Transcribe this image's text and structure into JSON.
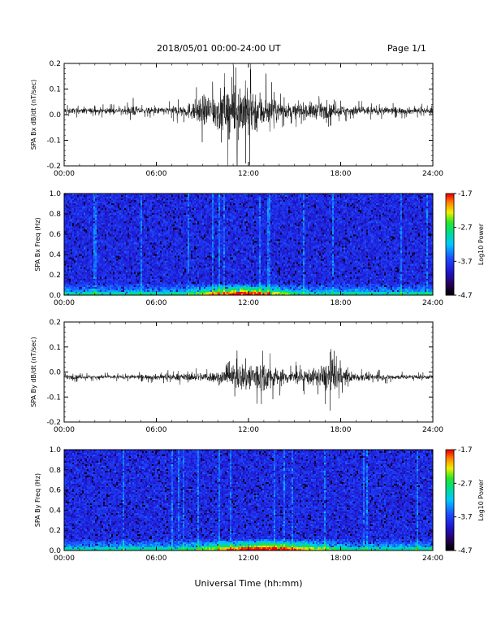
{
  "header": {
    "title": "2018/05/01  00:00-24:00 UT",
    "page": "Page 1/1"
  },
  "xaxis_title": "Universal Time (hh:mm)",
  "chart_data": [
    {
      "type": "line",
      "ylabel": "SPA Bx dB/dt (nT/sec)",
      "xticks": [
        "00:00",
        "06:00",
        "12:00",
        "18:00",
        "24:00"
      ],
      "xlim_hours": [
        0,
        24
      ],
      "ylim": [
        -0.2,
        0.2
      ],
      "yticks": [
        -0.2,
        -0.1,
        0.0,
        0.1,
        0.2
      ],
      "yticklabels": [
        "-0.2",
        "-0.1",
        "0.0",
        "0.1",
        "0.2"
      ],
      "baseline": 0.015,
      "envelope": [
        {
          "t": 0,
          "amp": 0.02
        },
        {
          "t": 4,
          "amp": 0.02
        },
        {
          "t": 4.5,
          "amp": 0.04
        },
        {
          "t": 5,
          "amp": 0.02
        },
        {
          "t": 7,
          "amp": 0.03
        },
        {
          "t": 8,
          "amp": 0.05
        },
        {
          "t": 9,
          "amp": 0.1
        },
        {
          "t": 10,
          "amp": 0.14
        },
        {
          "t": 11,
          "amp": 0.18
        },
        {
          "t": 11.5,
          "amp": 0.2
        },
        {
          "t": 12,
          "amp": 0.19
        },
        {
          "t": 13,
          "amp": 0.12
        },
        {
          "t": 14,
          "amp": 0.06
        },
        {
          "t": 15,
          "amp": 0.05
        },
        {
          "t": 16,
          "amp": 0.06
        },
        {
          "t": 17,
          "amp": 0.05
        },
        {
          "t": 18,
          "amp": 0.04
        },
        {
          "t": 20,
          "amp": 0.03
        },
        {
          "t": 24,
          "amp": 0.02
        }
      ]
    },
    {
      "type": "heatmap",
      "ylabel": "SPA Bx Freq (Hz)",
      "xticks": [
        "00:00",
        "06:00",
        "12:00",
        "18:00",
        "24:00"
      ],
      "ylim": [
        0,
        1.0
      ],
      "yticklabels": [
        "0.0",
        "0.2",
        "0.4",
        "0.6",
        "0.8",
        "1.0"
      ],
      "colorbar": {
        "label": "Log10 Power",
        "ticks": [
          "-1.7",
          "-2.7",
          "-3.7",
          "-4.7"
        ],
        "range": [
          -4.7,
          -1.7
        ]
      },
      "low_freq_band_peak_hours": [
        8.5,
        14.5
      ]
    },
    {
      "type": "line",
      "ylabel": "SPA By dB/dt (nT/sec)",
      "xticks": [
        "00:00",
        "06:00",
        "12:00",
        "18:00",
        "24:00"
      ],
      "xlim_hours": [
        0,
        24
      ],
      "ylim": [
        -0.2,
        0.2
      ],
      "yticks": [
        -0.2,
        -0.1,
        0.0,
        0.1,
        0.2
      ],
      "yticklabels": [
        "-0.2",
        "-0.1",
        "0.0",
        "0.1",
        "0.2"
      ],
      "baseline": -0.02,
      "envelope": [
        {
          "t": 0,
          "amp": 0.015
        },
        {
          "t": 4,
          "amp": 0.015
        },
        {
          "t": 6,
          "amp": 0.02
        },
        {
          "t": 8,
          "amp": 0.025
        },
        {
          "t": 10,
          "amp": 0.04
        },
        {
          "t": 11,
          "amp": 0.08
        },
        {
          "t": 12,
          "amp": 0.12
        },
        {
          "t": 13,
          "amp": 0.11
        },
        {
          "t": 14,
          "amp": 0.06
        },
        {
          "t": 15,
          "amp": 0.05
        },
        {
          "t": 16.5,
          "amp": 0.06
        },
        {
          "t": 17.5,
          "amp": 0.14
        },
        {
          "t": 18,
          "amp": 0.06
        },
        {
          "t": 19,
          "amp": 0.03
        },
        {
          "t": 21,
          "amp": 0.02
        },
        {
          "t": 24,
          "amp": 0.015
        }
      ]
    },
    {
      "type": "heatmap",
      "ylabel": "SPA By Freq (Hz)",
      "xticks": [
        "00:00",
        "06:00",
        "12:00",
        "18:00",
        "24:00"
      ],
      "ylim": [
        0,
        1.0
      ],
      "yticklabels": [
        "0.0",
        "0.2",
        "0.4",
        "0.6",
        "0.8",
        "1.0"
      ],
      "colorbar": {
        "label": "Log10 Power",
        "ticks": [
          "-1.7",
          "-2.7",
          "-3.7",
          "-4.7"
        ],
        "range": [
          -4.7,
          -1.7
        ]
      },
      "low_freq_band_peak_hours": [
        8.5,
        17.5
      ]
    }
  ]
}
